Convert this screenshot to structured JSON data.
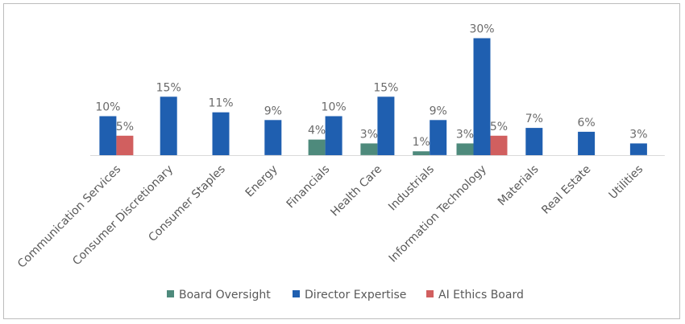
{
  "chart_data": {
    "type": "bar",
    "categories": [
      "Communication Services",
      "Consumer Discretionary",
      "Consumer Staples",
      "Energy",
      "Financials",
      "Health Care",
      "Industrials",
      "Information Technology",
      "Materials",
      "Real Estate",
      "Utilities"
    ],
    "series": [
      {
        "name": "Board Oversight",
        "color": "#4e8a7c",
        "values": [
          null,
          null,
          null,
          null,
          4,
          3,
          1,
          3,
          null,
          null,
          null
        ]
      },
      {
        "name": "Director Expertise",
        "color": "#1f5fb0",
        "values": [
          10,
          15,
          11,
          9,
          10,
          15,
          9,
          30,
          7,
          6,
          3
        ]
      },
      {
        "name": "AI Ethics Board",
        "color": "#d15f5f",
        "values": [
          5,
          null,
          null,
          null,
          null,
          null,
          null,
          5,
          null,
          null,
          null
        ]
      }
    ],
    "value_suffix": "%",
    "legend": "bottom",
    "grid": false
  }
}
